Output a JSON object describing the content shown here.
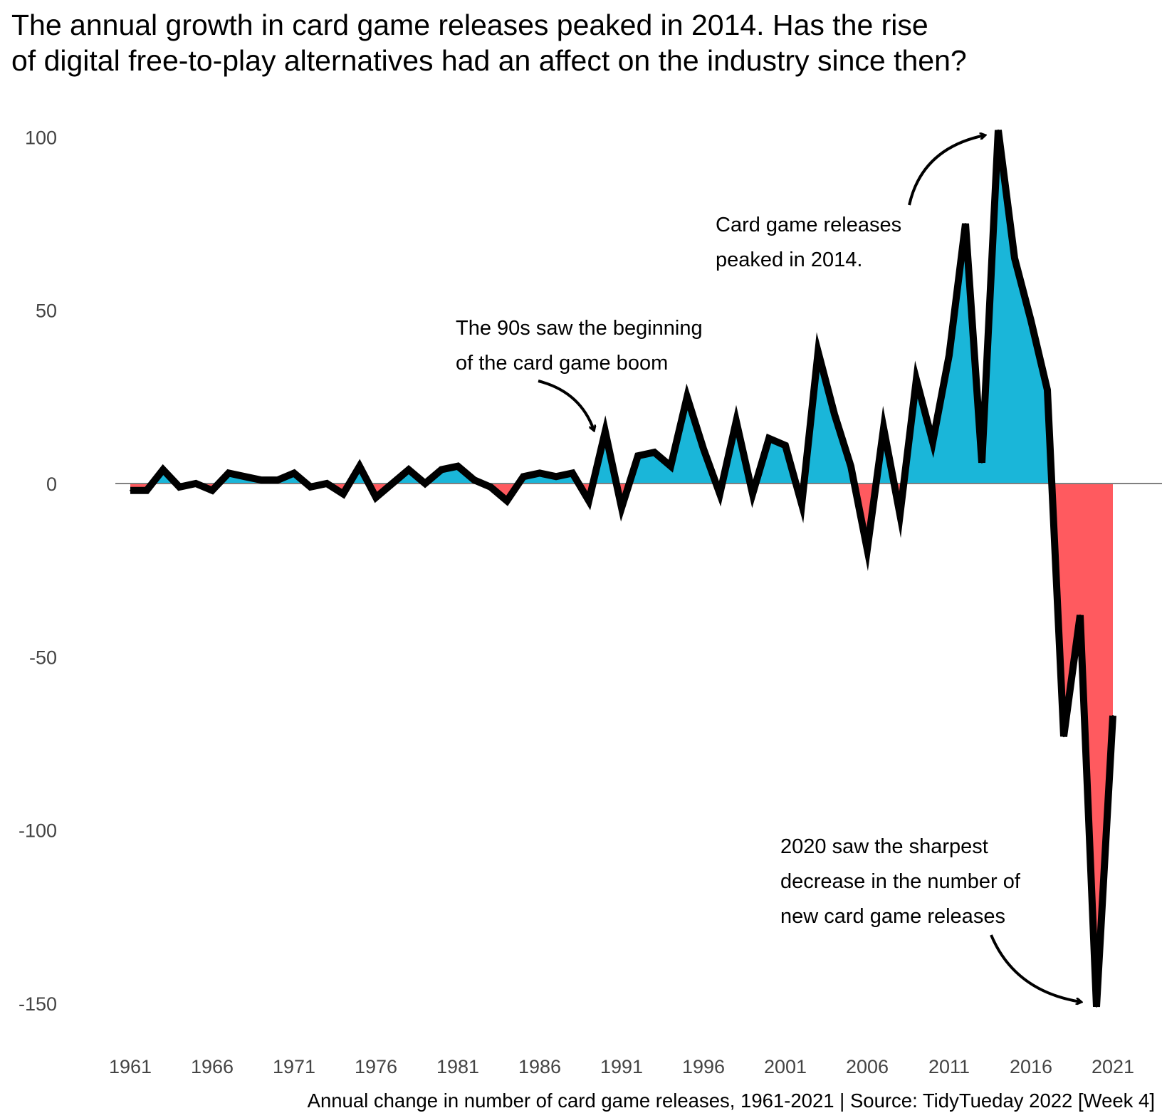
{
  "title": {
    "line1": "The annual growth in card game releases peaked in 2014. Has the rise",
    "line2": "of digital free-to-play alternatives had an affect on the industry since then?"
  },
  "caption": "Annual change in number of card game releases, 1961-2021 | Source: TidyTueday 2022 [Week 4]",
  "colors": {
    "positive": "#1AB6D9",
    "negative": "#FF5A5F",
    "line": "#000000",
    "zero_line": "#808080",
    "tick_text": "#444444"
  },
  "annotations": [
    {
      "lines": [
        "The 90s saw the beginning",
        "of the card game boom"
      ],
      "target_year": 1990
    },
    {
      "lines": [
        "Card game releases",
        "peaked in 2014."
      ],
      "target_year": 2014
    },
    {
      "lines": [
        "2020 saw the sharpest",
        "decrease in the number of",
        "new card game releases"
      ],
      "target_year": 2020
    }
  ],
  "chart_data": {
    "type": "area",
    "title": "The annual growth in card game releases peaked in 2014. Has the rise of digital free-to-play alternatives had an affect on the industry since then?",
    "xlabel": "Annual change in number of card game releases, 1961-2021 | Source: TidyTueday 2022 [Week 4]",
    "ylabel": "",
    "xlim": [
      1961,
      2021
    ],
    "ylim": [
      -150,
      100
    ],
    "x_ticks": [
      1961,
      1966,
      1971,
      1976,
      1981,
      1986,
      1991,
      1996,
      2001,
      2006,
      2011,
      2016,
      2021
    ],
    "y_ticks": [
      100,
      50,
      0,
      -50,
      -100,
      -150
    ],
    "grid": false,
    "x": [
      1961,
      1962,
      1963,
      1964,
      1965,
      1966,
      1967,
      1968,
      1969,
      1970,
      1971,
      1972,
      1973,
      1974,
      1975,
      1976,
      1977,
      1978,
      1979,
      1980,
      1981,
      1982,
      1983,
      1984,
      1985,
      1986,
      1987,
      1988,
      1989,
      1990,
      1991,
      1992,
      1993,
      1994,
      1995,
      1996,
      1997,
      1998,
      1999,
      2000,
      2001,
      2002,
      2003,
      2004,
      2005,
      2006,
      2007,
      2008,
      2009,
      2010,
      2011,
      2012,
      2013,
      2014,
      2015,
      2016,
      2017,
      2018,
      2019,
      2020,
      2021
    ],
    "values": [
      -2,
      -2,
      4,
      -1,
      0,
      -2,
      3,
      2,
      1,
      1,
      3,
      -1,
      0,
      -3,
      5,
      -4,
      0,
      4,
      0,
      4,
      5,
      1,
      -1,
      -5,
      2,
      3,
      2,
      3,
      -5,
      15,
      -7,
      8,
      9,
      5,
      25,
      10,
      -3,
      18,
      -3,
      13,
      11,
      -6,
      38,
      20,
      5,
      -19,
      16,
      -9,
      30,
      12,
      37,
      75,
      6,
      102,
      65,
      47,
      27,
      -73,
      -38,
      -151,
      -67
    ]
  }
}
